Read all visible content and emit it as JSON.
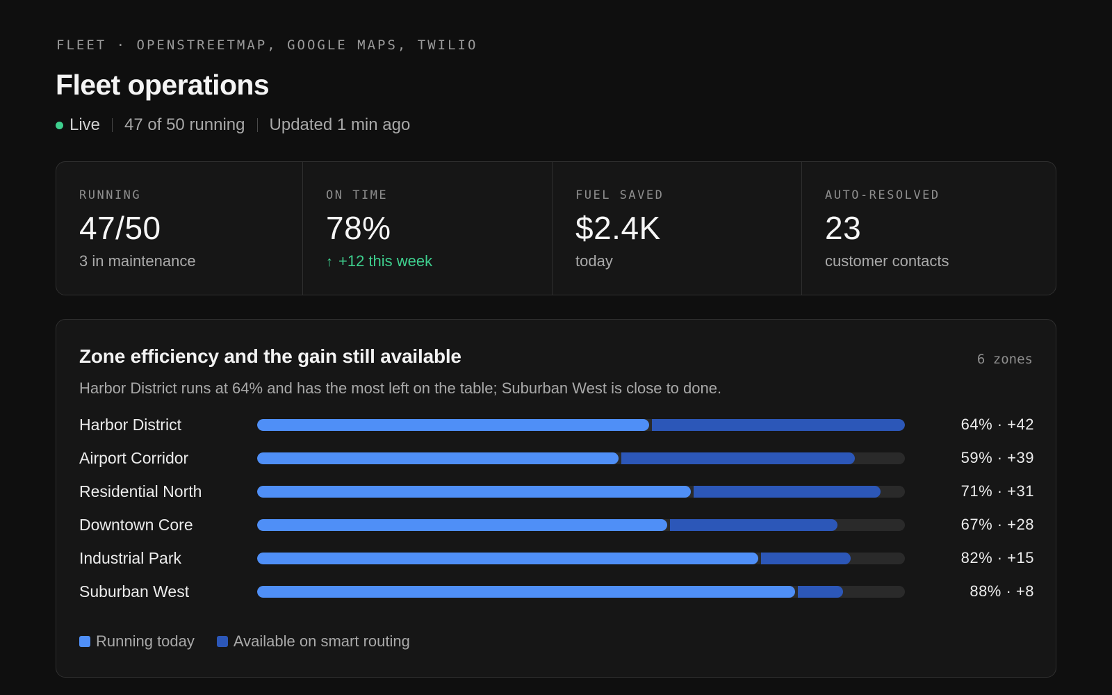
{
  "header": {
    "eyebrow": "FLEET · OPENSTREETMAP, GOOGLE MAPS, TWILIO",
    "title": "Fleet operations",
    "status": {
      "live": "Live",
      "running": "47 of 50 running",
      "updated": "Updated 1 min ago",
      "live_color": "#3ecf8e"
    }
  },
  "kpis": [
    {
      "label": "RUNNING",
      "value": "47/50",
      "sub": "3 in maintenance",
      "trend": ""
    },
    {
      "label": "ON TIME",
      "value": "78%",
      "sub": "+12 this week",
      "trend": "up",
      "trend_icon": "arrow-up-icon",
      "trend_glyph": "↑",
      "trend_color": "#3ecf8e"
    },
    {
      "label": "FUEL SAVED",
      "value": "$2.4K",
      "sub": "today",
      "trend": ""
    },
    {
      "label": "AUTO-RESOLVED",
      "value": "23",
      "sub": "customer contacts",
      "trend": ""
    }
  ],
  "zones": {
    "title": "Zone efficiency and the gain still available",
    "count": "6 zones",
    "subtitle": "Harbor District runs at 64% and has the most left on the table; Suburban West is close to done.",
    "colors": {
      "running": "#4f8ff7",
      "available": "#2c57b8",
      "track": "#2a2a2a"
    },
    "rows": [
      {
        "name": "Harbor District",
        "running_pct": 60.5,
        "available_pct": 39.5,
        "stat": "64% · +42"
      },
      {
        "name": "Airport Corridor",
        "running_pct": 55.8,
        "available_pct": 36.5,
        "stat": "59% · +39"
      },
      {
        "name": "Residential North",
        "running_pct": 67.0,
        "available_pct": 29.2,
        "stat": "71% · +31"
      },
      {
        "name": "Downtown Core",
        "running_pct": 63.3,
        "available_pct": 26.3,
        "stat": "67% · +28"
      },
      {
        "name": "Industrial Park",
        "running_pct": 77.4,
        "available_pct": 14.2,
        "stat": "82% · +15"
      },
      {
        "name": "Suburban West",
        "running_pct": 83.1,
        "available_pct": 7.4,
        "stat": "88% · +8"
      }
    ],
    "legend": [
      {
        "label": "Running today",
        "color": "#4f8ff7"
      },
      {
        "label": "Available on smart routing",
        "color": "#2c57b8"
      }
    ]
  }
}
